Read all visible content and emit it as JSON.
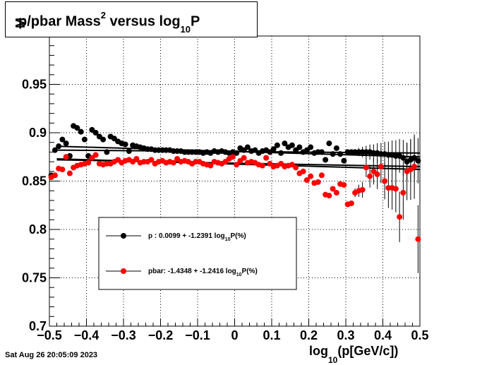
{
  "title": {
    "prefix": "p/pbar Mass",
    "superscript": "2",
    "middle": " versus log",
    "subscript": "10",
    "suffix": "P"
  },
  "ylabel_fragment": "M",
  "xlabel": {
    "prefix": "log",
    "subscript": "10",
    "suffix": "(p[GeV/c])"
  },
  "timestamp": "Sat Aug 26 20:05:09 2023",
  "legend": {
    "p": {
      "label": "p  : 0.0099 + -1.2391 log",
      "sub": "10",
      "tail": "P(%)"
    },
    "pbar": {
      "label": "pbar: -1.4348 + -1.2416 log",
      "sub": "10",
      "tail": "P(%)"
    }
  },
  "colors": {
    "p": "#000000",
    "pbar": "#ff0000",
    "grid": "#000000"
  },
  "chart_data": {
    "type": "scatter",
    "title": "p/pbar Mass^2 versus log10P",
    "xlabel": "log10(p[GeV/c])",
    "ylabel": "M",
    "xlim": [
      -0.5,
      0.5
    ],
    "ylim": [
      0.7,
      1.0
    ],
    "xticks": [
      -0.5,
      -0.4,
      -0.3,
      -0.2,
      -0.1,
      0,
      0.1,
      0.2,
      0.3,
      0.4,
      0.5
    ],
    "xtick_labels": [
      "−0.5",
      "−0.4",
      "−0.3",
      "−0.2",
      "−0.1",
      "0",
      "0.1",
      "0.2",
      "0.3",
      "0.4",
      "0.5"
    ],
    "yticks": [
      0.7,
      0.75,
      0.8,
      0.85,
      0.9,
      0.95
    ],
    "ytick_labels": [
      "0.7",
      "0.75",
      "0.8",
      "0.85",
      "0.9",
      "0.95"
    ],
    "grid": true,
    "legend_position": "lower-left",
    "series": [
      {
        "name": "p",
        "x": [
          -0.495,
          -0.485,
          -0.475,
          -0.465,
          -0.455,
          -0.445,
          -0.435,
          -0.425,
          -0.415,
          -0.405,
          -0.395,
          -0.385,
          -0.375,
          -0.365,
          -0.355,
          -0.345,
          -0.335,
          -0.325,
          -0.315,
          -0.305,
          -0.295,
          -0.285,
          -0.275,
          -0.265,
          -0.255,
          -0.245,
          -0.235,
          -0.225,
          -0.215,
          -0.205,
          -0.195,
          -0.185,
          -0.175,
          -0.165,
          -0.155,
          -0.145,
          -0.135,
          -0.125,
          -0.115,
          -0.105,
          -0.095,
          -0.085,
          -0.075,
          -0.065,
          -0.055,
          -0.045,
          -0.035,
          -0.025,
          -0.015,
          -0.005,
          0.005,
          0.015,
          0.025,
          0.035,
          0.045,
          0.055,
          0.065,
          0.075,
          0.085,
          0.095,
          0.105,
          0.115,
          0.125,
          0.135,
          0.145,
          0.155,
          0.165,
          0.175,
          0.185,
          0.195,
          0.205,
          0.215,
          0.225,
          0.235,
          0.245,
          0.255,
          0.265,
          0.275,
          0.285,
          0.295,
          0.305,
          0.315,
          0.325,
          0.335,
          0.345,
          0.355,
          0.365,
          0.375,
          0.385,
          0.395,
          0.405,
          0.415,
          0.425,
          0.435,
          0.445,
          0.455,
          0.465,
          0.475,
          0.485,
          0.495
        ],
        "y": [
          0.856,
          0.882,
          0.886,
          0.893,
          0.889,
          0.876,
          0.907,
          0.905,
          0.901,
          0.893,
          0.876,
          0.903,
          0.9,
          0.896,
          0.893,
          0.88,
          0.896,
          0.894,
          0.891,
          0.889,
          0.888,
          0.881,
          0.887,
          0.886,
          0.885,
          0.884,
          0.883,
          0.883,
          0.882,
          0.882,
          0.882,
          0.882,
          0.882,
          0.881,
          0.881,
          0.881,
          0.88,
          0.88,
          0.88,
          0.88,
          0.88,
          0.879,
          0.88,
          0.879,
          0.881,
          0.88,
          0.881,
          0.88,
          0.879,
          0.88,
          0.879,
          0.884,
          0.882,
          0.885,
          0.881,
          0.882,
          0.879,
          0.881,
          0.882,
          0.88,
          0.883,
          0.887,
          0.879,
          0.889,
          0.885,
          0.887,
          0.882,
          0.885,
          0.88,
          0.882,
          0.885,
          0.879,
          0.88,
          0.88,
          0.872,
          0.889,
          0.878,
          0.884,
          0.878,
          0.871,
          0.88,
          0.88,
          0.88,
          0.88,
          0.88,
          0.88,
          0.88,
          0.879,
          0.879,
          0.878,
          0.878,
          0.877,
          0.877,
          0.876,
          0.876,
          0.874,
          0.87,
          0.872,
          0.874,
          0.871
        ]
      },
      {
        "name": "pbar",
        "x": [
          -0.495,
          -0.485,
          -0.475,
          -0.465,
          -0.455,
          -0.445,
          -0.435,
          -0.425,
          -0.415,
          -0.405,
          -0.395,
          -0.385,
          -0.375,
          -0.365,
          -0.355,
          -0.345,
          -0.335,
          -0.325,
          -0.315,
          -0.305,
          -0.295,
          -0.285,
          -0.275,
          -0.265,
          -0.255,
          -0.245,
          -0.235,
          -0.225,
          -0.215,
          -0.205,
          -0.195,
          -0.185,
          -0.175,
          -0.165,
          -0.155,
          -0.145,
          -0.135,
          -0.125,
          -0.115,
          -0.105,
          -0.095,
          -0.085,
          -0.075,
          -0.065,
          -0.055,
          -0.045,
          -0.035,
          -0.025,
          -0.015,
          -0.005,
          0.005,
          0.015,
          0.025,
          0.035,
          0.045,
          0.055,
          0.065,
          0.075,
          0.085,
          0.095,
          0.105,
          0.115,
          0.125,
          0.135,
          0.145,
          0.155,
          0.165,
          0.175,
          0.185,
          0.195,
          0.205,
          0.215,
          0.225,
          0.235,
          0.245,
          0.255,
          0.265,
          0.275,
          0.285,
          0.295,
          0.305,
          0.315,
          0.325,
          0.335,
          0.345,
          0.355,
          0.365,
          0.375,
          0.385,
          0.395,
          0.405,
          0.415,
          0.425,
          0.435,
          0.445,
          0.455,
          0.465,
          0.475,
          0.485,
          0.495
        ],
        "y": [
          0.854,
          0.856,
          0.863,
          0.862,
          0.875,
          0.858,
          0.864,
          0.866,
          0.867,
          0.868,
          0.869,
          0.874,
          0.877,
          0.868,
          0.867,
          0.868,
          0.868,
          0.87,
          0.872,
          0.869,
          0.871,
          0.872,
          0.87,
          0.873,
          0.869,
          0.87,
          0.87,
          0.872,
          0.868,
          0.87,
          0.871,
          0.869,
          0.87,
          0.869,
          0.873,
          0.87,
          0.871,
          0.87,
          0.868,
          0.87,
          0.87,
          0.868,
          0.867,
          0.866,
          0.87,
          0.869,
          0.868,
          0.87,
          0.873,
          0.875,
          0.867,
          0.871,
          0.874,
          0.869,
          0.87,
          0.869,
          0.867,
          0.866,
          0.874,
          0.868,
          0.865,
          0.866,
          0.868,
          0.865,
          0.866,
          0.867,
          0.864,
          0.858,
          0.86,
          0.851,
          0.855,
          0.848,
          0.849,
          0.856,
          0.836,
          0.835,
          0.842,
          0.838,
          0.847,
          0.846,
          0.826,
          0.827,
          0.838,
          0.84,
          0.841,
          0.864,
          0.855,
          0.86,
          0.857,
          0.865,
          0.85,
          0.843,
          0.843,
          0.842,
          0.813,
          0.838,
          0.86,
          0.862,
          0.865,
          0.79
        ]
      }
    ],
    "fit_lines": [
      {
        "series": "p",
        "x": [
          -0.48,
          0.5
        ],
        "y": [
          0.886,
          0.875
        ]
      },
      {
        "series": "p",
        "x": [
          -0.48,
          0.5
        ],
        "y": [
          0.882,
          0.879
        ]
      },
      {
        "series": "pbar",
        "x": [
          -0.48,
          0.5
        ],
        "y": [
          0.873,
          0.862
        ]
      },
      {
        "series": "pbar",
        "x": [
          -0.48,
          0.5
        ],
        "y": [
          0.872,
          0.865
        ]
      }
    ]
  }
}
